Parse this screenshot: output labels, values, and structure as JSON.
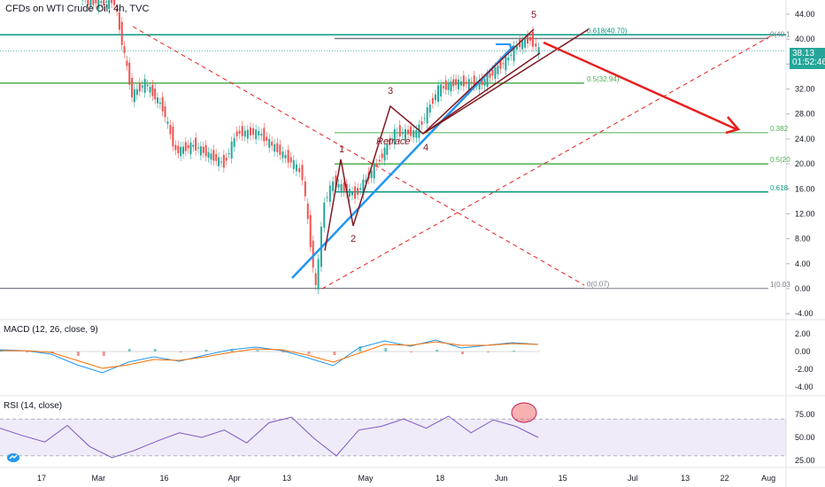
{
  "header": {
    "title": "CFDs on WTI Crude Oil, 4h, TVC"
  },
  "price_badges": {
    "last": "38.13",
    "countdown": "01:52:46"
  },
  "macd_label": "MACD (12, 26, close, 9)",
  "rsi_label": "RSI (14, close)",
  "colors": {
    "up": "#26a69a",
    "down": "#ef5350",
    "fib_teal": "#089981",
    "fib_green": "#4caf50",
    "blue_line": "#2196f3",
    "wave": "#801922",
    "red_arrow": "#e91e1e",
    "rsi": "#7e57c2"
  },
  "chart_data": [
    {
      "type": "candlestick",
      "title": "CFDs on WTI Crude Oil, 4h, TVC",
      "x_ticks": [
        "17",
        "Mar",
        "16",
        "Apr",
        "13",
        "May",
        "18",
        "Jun",
        "15",
        "Jul",
        "13",
        "22",
        "Aug"
      ],
      "y_ticks": [
        "44.00",
        "40.00",
        "36.00",
        "32.00",
        "28.00",
        "24.00",
        "20.00",
        "16.00",
        "12.00",
        "8.00",
        "4.00",
        "0.00",
        "-4.00"
      ],
      "ylim": [
        -4,
        44
      ],
      "last_price": 38.13,
      "price_path": [
        {
          "t": "2020-02-20",
          "p": 52
        },
        {
          "t": "2020-02-28",
          "p": 46
        },
        {
          "t": "2020-03-05",
          "p": 46
        },
        {
          "t": "2020-03-09",
          "p": 31
        },
        {
          "t": "2020-03-12",
          "p": 33
        },
        {
          "t": "2020-03-16",
          "p": 29
        },
        {
          "t": "2020-03-19",
          "p": 22
        },
        {
          "t": "2020-03-23",
          "p": 23
        },
        {
          "t": "2020-03-30",
          "p": 20
        },
        {
          "t": "2020-04-02",
          "p": 25
        },
        {
          "t": "2020-04-07",
          "p": 25
        },
        {
          "t": "2020-04-10",
          "p": 23
        },
        {
          "t": "2020-04-15",
          "p": 20
        },
        {
          "t": "2020-04-17",
          "p": 18
        },
        {
          "t": "2020-04-20",
          "p": 0
        },
        {
          "t": "2020-04-22",
          "p": 14
        },
        {
          "t": "2020-04-24",
          "p": 17
        },
        {
          "t": "2020-04-29",
          "p": 15
        },
        {
          "t": "2020-05-04",
          "p": 20
        },
        {
          "t": "2020-05-08",
          "p": 25
        },
        {
          "t": "2020-05-13",
          "p": 25
        },
        {
          "t": "2020-05-18",
          "p": 32
        },
        {
          "t": "2020-05-22",
          "p": 33
        },
        {
          "t": "2020-05-28",
          "p": 33
        },
        {
          "t": "2020-06-03",
          "p": 37
        },
        {
          "t": "2020-06-05",
          "p": 39
        },
        {
          "t": "2020-06-08",
          "p": 40
        },
        {
          "t": "2020-06-10",
          "p": 38.13
        }
      ],
      "fib_levels": [
        {
          "label": "0.618(40.70)",
          "value": 40.7
        },
        {
          "label": "0(40.1",
          "value": 40.1
        },
        {
          "label": "0.5(32.94)",
          "value": 32.94
        },
        {
          "label": "0.382",
          "value": 25.0
        },
        {
          "label": "0.5(20",
          "value": 20.0
        },
        {
          "label": "0.618",
          "value": 15.5
        },
        {
          "label": "0(0.07)",
          "value": 0.07
        },
        {
          "label": "1(0.03",
          "value": 0.03
        }
      ],
      "wave_labels": [
        "1",
        "2",
        "3",
        "4",
        "5"
      ],
      "annotation": "Retrace"
    },
    {
      "type": "line",
      "title": "MACD (12, 26, close, 9)",
      "y_ticks": [
        "2.00",
        "0.00",
        "-2.00",
        "-4.00"
      ],
      "ylim": [
        -5,
        3
      ],
      "series": [
        {
          "name": "MACD",
          "values": [
            0.2,
            0.1,
            -0.3,
            -1.5,
            -2.4,
            -1.2,
            -0.6,
            -1.1,
            -0.4,
            0.2,
            0.5,
            0.1,
            -0.7,
            -1.6,
            0.4,
            1.2,
            0.6,
            1.3,
            0.4,
            0.7,
            1.0,
            0.8
          ]
        },
        {
          "name": "Signal",
          "values": [
            0.1,
            0.1,
            -0.1,
            -1.0,
            -1.9,
            -1.5,
            -0.9,
            -1.0,
            -0.6,
            -0.1,
            0.3,
            0.2,
            -0.4,
            -1.2,
            -0.2,
            0.8,
            0.7,
            1.1,
            0.7,
            0.7,
            0.9,
            0.8
          ]
        }
      ]
    },
    {
      "type": "line",
      "title": "RSI (14, close)",
      "y_ticks": [
        "75.00",
        "50.00",
        "25.00"
      ],
      "ylim": [
        15,
        85
      ],
      "series": [
        {
          "name": "RSI",
          "values": [
            60,
            52,
            45,
            63,
            40,
            28,
            36,
            46,
            55,
            50,
            58,
            44,
            66,
            72,
            49,
            30,
            58,
            62,
            70,
            60,
            73,
            55,
            69,
            62,
            50
          ]
        }
      ]
    }
  ]
}
